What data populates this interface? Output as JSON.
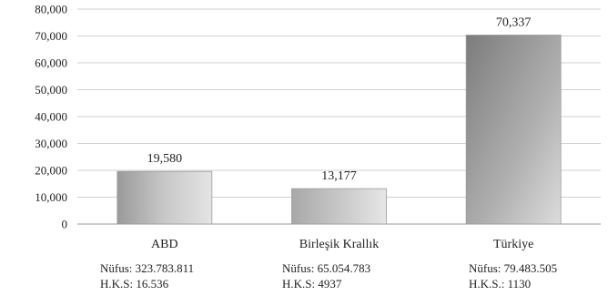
{
  "chart_data": {
    "type": "bar",
    "title": "",
    "xlabel": "",
    "ylabel": "",
    "ylim": [
      0,
      80000
    ],
    "yticks": [
      "0",
      "10,000",
      "20,000",
      "30,000",
      "40,000",
      "50,000",
      "60,000",
      "70,000",
      "80,000"
    ],
    "grid": true,
    "categories": [
      "ABD",
      "Birleşik Krallık",
      "Türkiye"
    ],
    "values": [
      19580,
      13177,
      70337
    ],
    "value_labels": [
      "19,580",
      "13,177",
      "70,337"
    ],
    "category_notes": [
      {
        "nufus": "Nüfus: 323.783.811",
        "hks": "H.K.S: 16.536"
      },
      {
        "nufus": "Nüfus: 65.054.783",
        "hks": "H.K.S: 4937"
      },
      {
        "nufus": "Nüfus: 79.483.505",
        "hks": "H.K.S.: 1130"
      }
    ],
    "colors": {
      "bar_light": "#e6e6e6",
      "bar_dark": "#8a8a8a",
      "grid": "#d0d0d0",
      "axis": "#999999"
    }
  }
}
